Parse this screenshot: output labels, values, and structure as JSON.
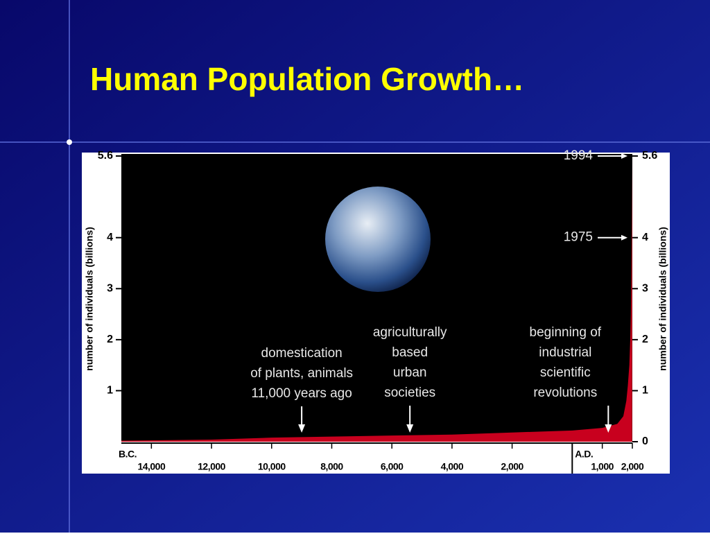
{
  "slide": {
    "title": "Human Population Growth…"
  },
  "chart_data": {
    "type": "area",
    "y_label": "number of individuals (billions)",
    "bc_label": "B.C.",
    "ad_label": "A.D.",
    "x": [
      -15000,
      -12000,
      -10000,
      -8000,
      -6000,
      -4000,
      -2000,
      0,
      1000,
      1500,
      1700,
      1800,
      1850,
      1900,
      1930,
      1950,
      1960,
      1975,
      1987,
      1994
    ],
    "values": [
      0.02,
      0.04,
      0.08,
      0.1,
      0.12,
      0.14,
      0.18,
      0.22,
      0.27,
      0.35,
      0.5,
      0.8,
      1.1,
      1.5,
      2,
      2.5,
      3,
      4,
      5,
      5.6
    ],
    "color": "#c8001e",
    "xlim": [
      -15000,
      2000
    ],
    "xticks": [
      {
        "value": -14000,
        "label": "14,000"
      },
      {
        "value": -12000,
        "label": "12,000"
      },
      {
        "value": -10000,
        "label": "10,000"
      },
      {
        "value": -8000,
        "label": "8,000"
      },
      {
        "value": -6000,
        "label": "6,000"
      },
      {
        "value": -4000,
        "label": "4,000"
      },
      {
        "value": -2000,
        "label": "2,000"
      },
      {
        "value": 1000,
        "label": "1,000"
      },
      {
        "value": 2000,
        "label": "2,000"
      }
    ],
    "ylim": [
      0,
      5.6
    ],
    "yticks": [
      0,
      1,
      2,
      3,
      4,
      5.6
    ],
    "annotations": [
      {
        "lines": [
          "domestication",
          "of plants, animals",
          "11,000 years ago"
        ],
        "x": -9000
      },
      {
        "lines": [
          "agriculturally",
          "based",
          "urban",
          "societies"
        ],
        "x": -5400
      },
      {
        "lines": [
          "beginning of",
          "industrial",
          "scientific",
          "revolutions"
        ],
        "x": 1200
      }
    ],
    "year_markers": [
      {
        "label": "1994",
        "y": 5.6
      },
      {
        "label": "1975",
        "y": 4
      }
    ]
  }
}
